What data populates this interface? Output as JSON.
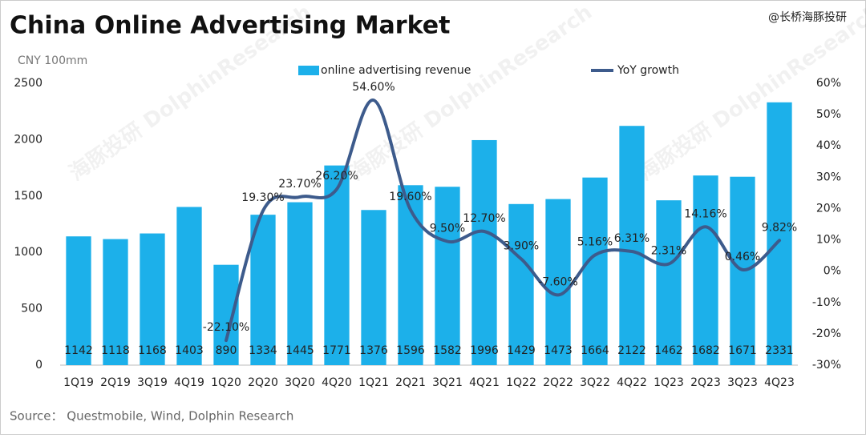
{
  "chart_data": {
    "type": "bar",
    "title": "China Online Advertising Market",
    "watermark_corner": "@长桥海豚投研",
    "watermark": "海豚投研 DolphinResearch",
    "y_axis_label": "CNY 100mm",
    "source": "Source：  Questmobile, Wind, Dolphin Research",
    "categories": [
      "1Q19",
      "2Q19",
      "3Q19",
      "4Q19",
      "1Q20",
      "2Q20",
      "3Q20",
      "4Q20",
      "1Q21",
      "2Q21",
      "3Q21",
      "4Q21",
      "1Q22",
      "2Q22",
      "3Q22",
      "4Q22",
      "1Q23",
      "2Q23",
      "3Q23",
      "4Q23"
    ],
    "series": [
      {
        "name": "online advertising revenue",
        "type": "bar",
        "color": "#1cb0ea",
        "values": [
          1142,
          1118,
          1168,
          1403,
          890,
          1334,
          1445,
          1771,
          1376,
          1596,
          1582,
          1996,
          1429,
          1473,
          1664,
          2122,
          1462,
          1682,
          1671,
          2331
        ]
      },
      {
        "name": "YoY growth",
        "type": "line",
        "axis": "y2",
        "color": "#3d5b8c",
        "values": [
          null,
          null,
          null,
          null,
          -22.1,
          19.3,
          23.7,
          26.2,
          54.6,
          19.6,
          9.5,
          12.7,
          3.9,
          -7.6,
          5.16,
          6.31,
          2.31,
          14.16,
          0.46,
          9.82
        ],
        "value_labels": [
          null,
          null,
          null,
          null,
          "-22.10%",
          "19.30%",
          "23.70%",
          "26.20%",
          "54.60%",
          "19.60%",
          "9.50%",
          "12.70%",
          "3.90%",
          "-7.60%",
          "5.16%",
          "6.31%",
          "2.31%",
          "14.16%",
          "0.46%",
          "9.82%"
        ]
      }
    ],
    "ylim": [
      0,
      2500
    ],
    "yticks": [
      0,
      500,
      1000,
      1500,
      2000,
      2500
    ],
    "y2lim": [
      -30,
      60
    ],
    "y2ticks": [
      {
        "value": -30,
        "label": "-30%"
      },
      {
        "value": -20,
        "label": "-20%"
      },
      {
        "value": -10,
        "label": "-10%"
      },
      {
        "value": 0,
        "label": "0%"
      },
      {
        "value": 10,
        "label": "10%"
      },
      {
        "value": 20,
        "label": "20%"
      },
      {
        "value": 30,
        "label": "30%"
      },
      {
        "value": 40,
        "label": "40%"
      },
      {
        "value": 50,
        "label": "50%"
      },
      {
        "value": 60,
        "label": "60%"
      }
    ],
    "grid": false
  }
}
